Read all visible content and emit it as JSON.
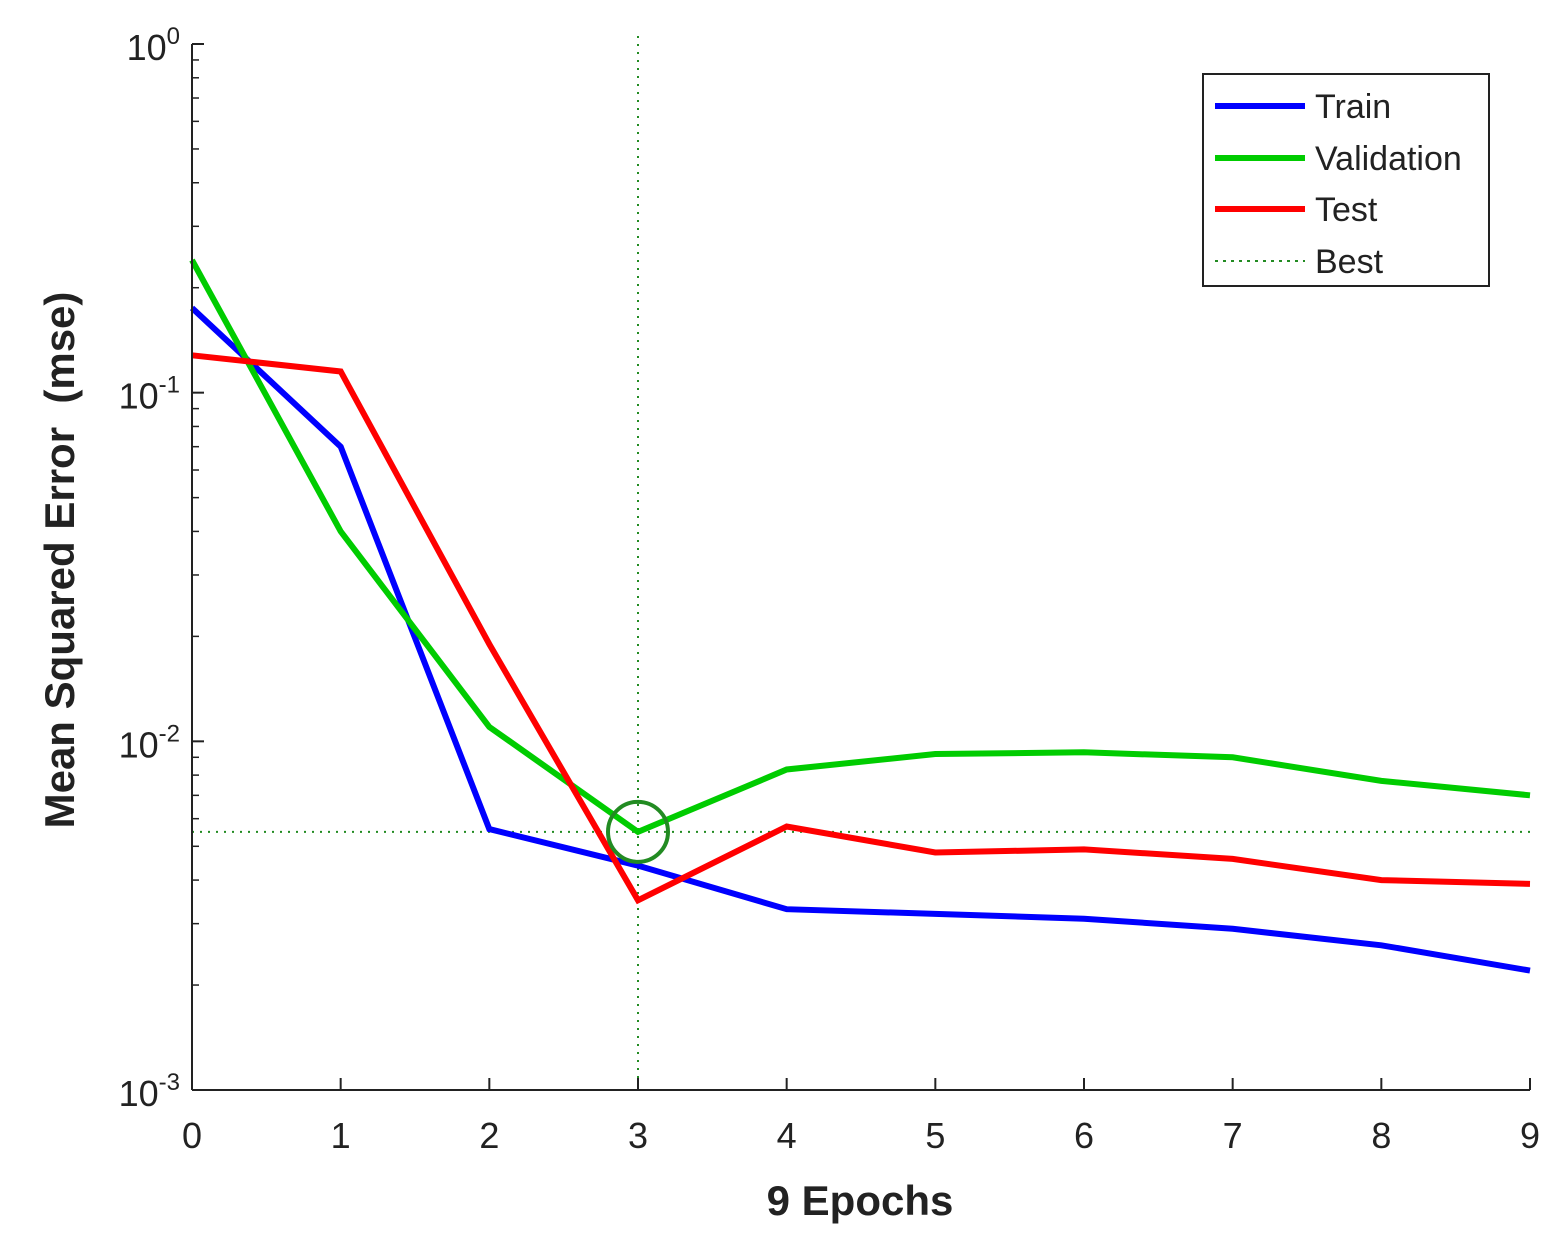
{
  "chart_data": {
    "type": "line",
    "xlabel": "9 Epochs",
    "ylabel": "Mean Squared Error  (mse)",
    "yscale": "log",
    "xlim": [
      0,
      9
    ],
    "ylim": [
      0.001,
      1
    ],
    "x_ticks": [
      "0",
      "1",
      "2",
      "3",
      "4",
      "5",
      "6",
      "7",
      "8",
      "9"
    ],
    "y_ticks": [
      {
        "value": 1,
        "base": "10",
        "exp": "0"
      },
      {
        "value": 0.1,
        "base": "10",
        "exp": "-1"
      },
      {
        "value": 0.01,
        "base": "10",
        "exp": "-2"
      },
      {
        "value": 0.001,
        "base": "10",
        "exp": "-3"
      }
    ],
    "x": [
      0,
      1,
      2,
      3,
      4,
      5,
      6,
      7,
      8,
      9
    ],
    "series": [
      {
        "name": "Train",
        "color": "#0000ff",
        "values": [
          0.175,
          0.07,
          0.0056,
          0.0044,
          0.0033,
          0.0032,
          0.0031,
          0.0029,
          0.0026,
          0.0022
        ]
      },
      {
        "name": "Validation",
        "color": "#00cc00",
        "values": [
          0.24,
          0.04,
          0.011,
          0.0055,
          0.0083,
          0.0092,
          0.0093,
          0.009,
          0.0077,
          0.007
        ]
      },
      {
        "name": "Test",
        "color": "#ff0000",
        "values": [
          0.128,
          0.115,
          0.019,
          0.0035,
          0.0057,
          0.0048,
          0.0049,
          0.0046,
          0.004,
          0.0039
        ]
      }
    ],
    "best": {
      "label": "Best",
      "epoch": 3,
      "value": 0.0055,
      "color": "#228b22"
    },
    "legend": {
      "position": "top-right",
      "entries": [
        "Train",
        "Validation",
        "Test",
        "Best"
      ]
    }
  }
}
